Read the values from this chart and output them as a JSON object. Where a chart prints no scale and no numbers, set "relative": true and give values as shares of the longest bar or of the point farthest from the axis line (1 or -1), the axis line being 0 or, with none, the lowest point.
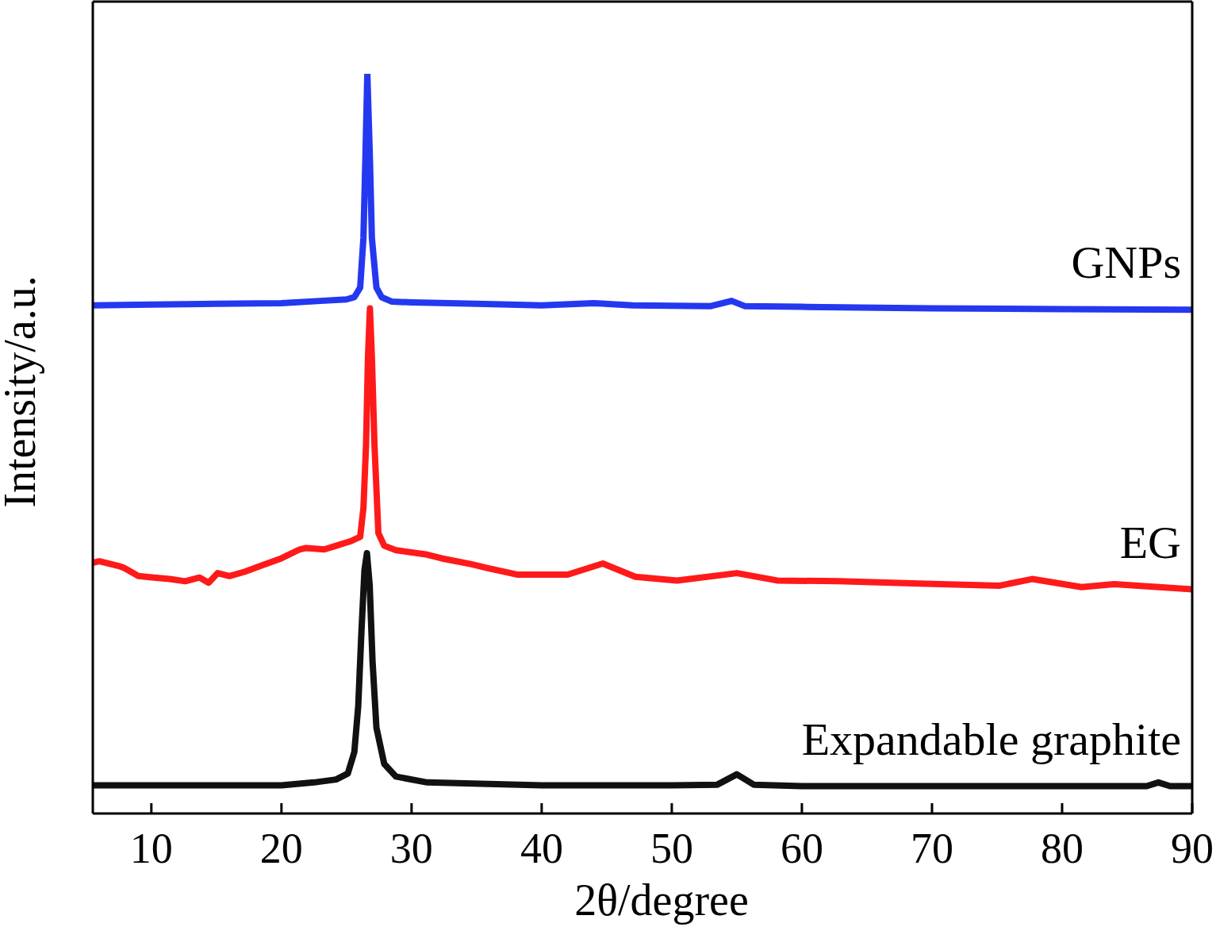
{
  "chart_data": {
    "type": "line",
    "xlabel": "2θ/degree",
    "ylabel": "Intensity/a.u.",
    "relative": true,
    "xlim": [
      5.5,
      90
    ],
    "xticks": [
      10,
      20,
      30,
      40,
      50,
      60,
      70,
      80,
      90
    ],
    "line_style": "solid",
    "series": [
      {
        "name": "GNPs",
        "color": "#2438f0",
        "x": [
          5.5,
          10,
          15,
          20,
          23,
          25,
          25.6,
          26.05,
          26.3,
          26.45,
          26.6,
          26.8,
          26.95,
          27.3,
          27.7,
          28.5,
          30,
          35,
          40,
          44,
          47,
          53,
          54.6,
          55.6,
          60,
          70,
          80,
          90
        ],
        "values": [
          0.687,
          0.688,
          0.689,
          0.69,
          0.693,
          0.695,
          0.698,
          0.711,
          0.778,
          0.885,
          1.0,
          0.885,
          0.778,
          0.711,
          0.698,
          0.692,
          0.691,
          0.689,
          0.687,
          0.69,
          0.687,
          0.686,
          0.693,
          0.686,
          0.685,
          0.683,
          0.682,
          0.681
        ]
      },
      {
        "name": "EG",
        "color": "#ff1a1a",
        "x": [
          5.5,
          6.0,
          7.6,
          7.9,
          9.0,
          10.2,
          11.4,
          12.6,
          13.7,
          14.4,
          15.1,
          16.0,
          17.2,
          18.6,
          20.0,
          21.4,
          21.9,
          23.3,
          24.2,
          25.3,
          26.05,
          26.3,
          26.5,
          26.65,
          26.8,
          26.95,
          27.15,
          27.45,
          27.9,
          28.8,
          31.2,
          32.3,
          34.6,
          35.8,
          38.1,
          40.0,
          42.0,
          44.7,
          47.2,
          50.4,
          55.0,
          58.1,
          62.8,
          69.0,
          75.2,
          77.7,
          81.5,
          84.0,
          90
        ],
        "values": [
          0.339,
          0.341,
          0.334,
          0.332,
          0.321,
          0.319,
          0.317,
          0.314,
          0.319,
          0.312,
          0.325,
          0.321,
          0.327,
          0.336,
          0.345,
          0.357,
          0.359,
          0.357,
          0.362,
          0.368,
          0.374,
          0.413,
          0.498,
          0.617,
          0.683,
          0.617,
          0.498,
          0.379,
          0.362,
          0.356,
          0.35,
          0.345,
          0.337,
          0.332,
          0.323,
          0.323,
          0.323,
          0.338,
          0.32,
          0.315,
          0.325,
          0.315,
          0.314,
          0.311,
          0.308,
          0.317,
          0.306,
          0.31,
          0.303
        ]
      },
      {
        "name": "Expandable graphite",
        "color": "#111111",
        "x": [
          5.5,
          10,
          15,
          20,
          22.5,
          24.2,
          25.1,
          25.6,
          25.9,
          26.15,
          26.38,
          26.57,
          26.78,
          27.0,
          27.3,
          27.9,
          28.8,
          31.2,
          40,
          50,
          53.5,
          55.0,
          56.3,
          60,
          70,
          80,
          86.5,
          87.4,
          88.3,
          90
        ],
        "values": [
          0.038,
          0.038,
          0.038,
          0.038,
          0.042,
          0.046,
          0.054,
          0.083,
          0.145,
          0.247,
          0.329,
          0.352,
          0.309,
          0.206,
          0.116,
          0.067,
          0.05,
          0.042,
          0.038,
          0.038,
          0.039,
          0.053,
          0.039,
          0.037,
          0.037,
          0.037,
          0.037,
          0.042,
          0.037,
          0.037
        ]
      }
    ]
  }
}
